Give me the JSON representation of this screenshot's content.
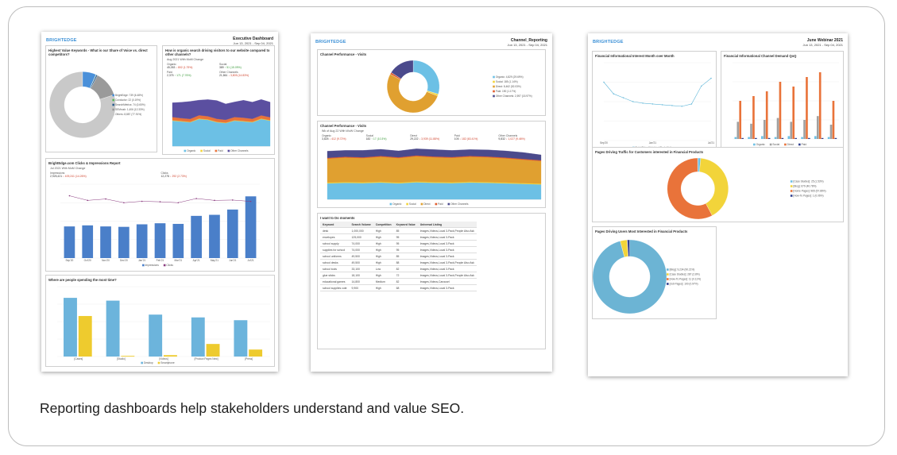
{
  "caption": "Reporting dashboards help stakeholders understand and value SEO.",
  "dashboards": [
    {
      "brand": "BRIGHTEDGE",
      "title": "Executive Dashboard",
      "date_range": "Jun 13, 2021 - Sep 04, 2021",
      "panels": [
        {
          "type": "donut",
          "title": "Highest Value Keywords - What is our Share of Voice vs. direct competitors?",
          "legend": [
            "BrightEdge: 739 (6.48%)",
            "Conductor: 22 (0.19%)",
            "SearchMetrics: 74 (0.65%)",
            "SEMrush: 1,406 (12.33%)",
            "Others: 8,887 (77.91%)"
          ],
          "values": [
            6.48,
            0.19,
            0.65,
            12.33,
            77.91
          ],
          "colors": [
            "#4a90d9",
            "#5cb85c",
            "#2f5f8f",
            "#9a9a9a",
            "#c9c9c9"
          ]
        },
        {
          "type": "area",
          "title": "How is organic search driving visitors to our website compared to other channels?",
          "subtitle": "Aug 2021 With MoM Change",
          "stats": [
            {
              "label": "Organic",
              "value": "45,053",
              "change": "↓ 802 (1.75%)"
            },
            {
              "label": "Social",
              "value": "389",
              "change": "↑ 51 (15.09%)"
            },
            {
              "label": "Paid",
              "value": "2,375",
              "change": "↑ 171 (7.76%)"
            },
            {
              "label": "Other Channels",
              "value": "21,861",
              "change": "↓ 3,805 (14.83%)"
            }
          ],
          "ylim": [
            0,
            4000
          ],
          "series": [
            {
              "name": "Organic",
              "color": "#6cc0e5",
              "values": [
                1600,
                1550,
                1500,
                1700,
                1650,
                1500,
                1450,
                1600,
                1550,
                1500,
                1700,
                1600
              ]
            },
            {
              "name": "Social",
              "color": "#f2d43a",
              "values": [
                30,
                30,
                25,
                35,
                30,
                30,
                25,
                30,
                30,
                30,
                35,
                30
              ]
            },
            {
              "name": "Paid",
              "color": "#e9733a",
              "values": [
                200,
                180,
                190,
                210,
                200,
                190,
                180,
                200,
                210,
                190,
                200,
                190
              ]
            },
            {
              "name": "Other Channels",
              "color": "#5b4fa0",
              "values": [
                900,
                1000,
                1100,
                950,
                1050,
                1150,
                1000,
                950,
                1100,
                1050,
                1000,
                950
              ]
            }
          ]
        },
        {
          "type": "combo",
          "title": "BrightEdge.com Clicks & Impressions Report",
          "subtitle": "Jul 2021 With MoM Change",
          "stats": [
            {
              "label": "Impressions",
              "value": "2,925,421",
              "change": "↓ 409,241 (14.26%)"
            },
            {
              "label": "Clicks",
              "value": "12,278",
              "change": "↓ 292 (2.73%)"
            }
          ],
          "categories": [
            "Sep'20",
            "Oct'20",
            "Nov'20",
            "Dec'20",
            "Jan'21",
            "Feb'21",
            "Mar'21",
            "Apr'21",
            "May'21",
            "Jun'21",
            "Jul'21"
          ],
          "ylim": [
            0,
            3500000
          ],
          "y2lim": [
            0,
            16000
          ],
          "series": [
            {
              "name": "Impressions",
              "color": "#4a7fc9",
              "values": [
                1500000,
                1550000,
                1500000,
                1480000,
                1600000,
                1650000,
                1620000,
                2000000,
                2050000,
                2300000,
                2925421
              ]
            },
            {
              "name": "Clicks",
              "color": "#8a3b7f",
              "axis": "y2",
              "values": [
                13500,
                12500,
                12800,
                12000,
                12300,
                12200,
                12000,
                12900,
                12500,
                12570,
                12278
              ]
            }
          ]
        },
        {
          "type": "groupbars",
          "title": "Where are people spending the most time?",
          "categories": [
            "[Cases]",
            "[Studio]",
            "[Videos]",
            "[Product Pages New]",
            "[Press]"
          ],
          "ylim": [
            0,
            5
          ],
          "series": [
            {
              "name": "Desktop",
              "color": "#6cb4dc",
              "values": [
                4.2,
                4.0,
                3.0,
                2.8,
                2.6
              ]
            },
            {
              "name": "Smartphone",
              "color": "#eecb2e",
              "values": [
                2.9,
                0.05,
                0.1,
                0.9,
                0.5
              ]
            }
          ]
        }
      ]
    },
    {
      "brand": "BRIGHTEDGE",
      "title": "Channel_Reporting",
      "date_range": "Jun 13, 2021 - Sep 04, 2021",
      "panels": [
        {
          "type": "donut",
          "title": "Channel Performance - Visits",
          "legend": [
            "Organic: 4,829 (29.69%)",
            "Social: 185 (1.14%)",
            "Direct: 8,462 (52.03%)",
            "Paid: 190 (1.17%)",
            "Other Channels: 2,597 (15.97%)"
          ],
          "values": [
            29.69,
            1.14,
            52.03,
            1.17,
            15.97
          ],
          "colors": [
            "#6cc0e5",
            "#f2d43a",
            "#e0a030",
            "#e05a2b",
            "#4b4a8c"
          ]
        },
        {
          "type": "area",
          "title": "Channel Performance - Visits",
          "subtitle": "Wk of Aug 22 With WoW Change",
          "stats": [
            {
              "label": "Organic",
              "value": "3,825",
              "change": "↓ 412 (9.72%)"
            },
            {
              "label": "Social",
              "value": "182",
              "change": "↑ 17 (10.3%)"
            },
            {
              "label": "Direct",
              "value": "29,222",
              "change": "↓ 3,939 (11.88%)"
            },
            {
              "label": "Paid",
              "value": "105",
              "change": "↓ 182 (63.41%)"
            },
            {
              "label": "Other Channels",
              "value": "9,832",
              "change": "↓ 1,027 (9.46%)"
            }
          ],
          "ylim": [
            0,
            2000
          ],
          "series": [
            {
              "name": "Organic",
              "color": "#6cc0e5",
              "values": [
                600,
                620,
                610,
                630,
                600,
                640,
                620,
                610,
                630,
                620,
                600,
                580,
                560
              ]
            },
            {
              "name": "Social",
              "color": "#f2d43a",
              "values": [
                30,
                30,
                30,
                30,
                30,
                30,
                30,
                30,
                30,
                30,
                30,
                30,
                30
              ]
            },
            {
              "name": "Direct",
              "color": "#e0a030",
              "values": [
                900,
                920,
                910,
                940,
                920,
                950,
                930,
                920,
                940,
                930,
                910,
                880,
                850
              ]
            },
            {
              "name": "Paid",
              "color": "#e05a2b",
              "values": [
                30,
                30,
                30,
                30,
                30,
                30,
                30,
                30,
                30,
                30,
                30,
                30,
                30
              ]
            },
            {
              "name": "Other Channels",
              "color": "#4b4a8c",
              "values": [
                250,
                240,
                260,
                250,
                240,
                250,
                260,
                250,
                240,
                250,
                250,
                240,
                200
              ]
            }
          ]
        },
        {
          "type": "table",
          "title": "I want to Do moments",
          "columns": [
            "Keyword",
            "Search Volume",
            "Competition",
            "Keyword Value",
            "Universal Listing"
          ],
          "rows": [
            [
              "desk",
              "1,000,000",
              "High",
              "85",
              "Images,Videos,Local 3-Pack,People Also Ask"
            ],
            [
              "envelopes",
              "125,000",
              "High",
              "95",
              "Images,Videos,Local 3-Pack"
            ],
            [
              "school supply",
              "74,000",
              "High",
              "95",
              "Images,Videos,Local 3-Pack"
            ],
            [
              "supplies for school",
              "74,000",
              "High",
              "95",
              "Images,Videos,Local 3-Pack"
            ],
            [
              "school uniforms",
              "49,500",
              "High",
              "85",
              "Images,Videos,Local 3-Pack"
            ],
            [
              "school desks",
              "49,500",
              "High",
              "88",
              "Images,Videos,Local 3-Pack,People Also Ask"
            ],
            [
              "school tools",
              "33,100",
              "Low",
              "82",
              "Images,Videos,Local 3-Pack"
            ],
            [
              "glue sticks",
              "18,100",
              "High",
              "72",
              "Images,Videos,Local 3-Pack,People Also Ask"
            ],
            [
              "educational games",
              "14,800",
              "Medium",
              "82",
              "Images,Videos,Carousel"
            ],
            [
              "school supplies cute",
              "9,900",
              "High",
              "68",
              "Images,Videos,Local 3-Pack"
            ]
          ]
        }
      ]
    },
    {
      "brand": "BRIGHTEDGE",
      "title": "June Webinar 2021",
      "date_range": "Jun 13, 2021 - Sep 04, 2021",
      "panels": [
        {
          "type": "line",
          "title": "Financial Informational Interest Month over Month",
          "categories": [
            "Sep'20",
            null,
            null,
            null,
            null,
            "Jan'21",
            null,
            null,
            null,
            null,
            null,
            "Jul'21"
          ],
          "ylim": [
            0,
            100
          ],
          "series": [
            {
              "name": "BrightEdge Weighted Rank Visit",
              "color": "#5fb6d8",
              "values": [
                75,
                60,
                55,
                50,
                48,
                47,
                46,
                45,
                44,
                47,
                70,
                80
              ]
            }
          ]
        },
        {
          "type": "groupbars",
          "title": "Financial Informational Channel Demand QoQ",
          "note": "* Data is calculated for a partial period in the current date",
          "categories": [
            null,
            null,
            null,
            null,
            null,
            null,
            null,
            null
          ],
          "ylim": [
            0,
            80
          ],
          "series": [
            {
              "name": "Organic",
              "color": "#6cc0e5",
              "values": [
                2,
                2,
                3,
                2,
                3,
                2,
                3,
                2
              ]
            },
            {
              "name": "Social",
              "color": "#a0a0a0",
              "values": [
                18,
                16,
                20,
                22,
                18,
                20,
                24,
                15
              ]
            },
            {
              "name": "Direct",
              "color": "#e9733a",
              "values": [
                40,
                45,
                50,
                60,
                55,
                65,
                70,
                40
              ]
            },
            {
              "name": "Paid",
              "color": "#2f3f8f",
              "values": [
                1,
                1,
                1,
                1,
                1,
                1,
                1,
                1
              ]
            }
          ]
        },
        {
          "type": "donut",
          "title": "Pages Driving Traffic for Customers interested in Financial Products",
          "legend": [
            "[Case Studies]: 25 (1.53%)",
            "[Blog]: 679 (40.78%)",
            "[Home Pages]: 965 (57.86%)",
            "[How-To Pages]: 1 (0.06%)"
          ],
          "values": [
            1.53,
            40.78,
            57.86,
            0.06
          ],
          "colors": [
            "#6cc0e5",
            "#f2d43a",
            "#e9733a",
            "#2f3f8f"
          ]
        },
        {
          "type": "donut",
          "title": "Pages Driving Users Most Interested in Financial Products",
          "legend": [
            "[Blog]: 9,234 (90.21%)",
            "[Case Studies]: 287 (2.8%)",
            "[How-To Pages]: 11 (0.11%)",
            "[Job Pages]: 100 (0.97%)"
          ],
          "values": [
            90.21,
            2.8,
            0.11,
            0.97
          ],
          "colors": [
            "#6cb4d4",
            "#f2d43a",
            "#e9733a",
            "#2f3f8f"
          ]
        }
      ]
    }
  ]
}
